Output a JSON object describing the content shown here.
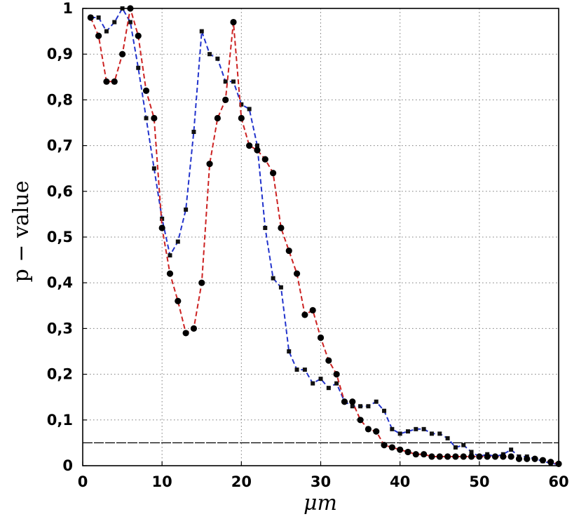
{
  "chart_data": {
    "type": "line",
    "title": "",
    "xlabel": "μm",
    "ylabel": "p − value",
    "xlim": [
      0,
      60
    ],
    "ylim": [
      0,
      1
    ],
    "x_ticks": [
      "0",
      "10",
      "20",
      "30",
      "40",
      "50",
      "60"
    ],
    "y_ticks": [
      "0",
      "0,1",
      "0,2",
      "0,3",
      "0,4",
      "0,5",
      "0,6",
      "0,7",
      "0,8",
      "0,9",
      "1"
    ],
    "grid": true,
    "legend": "none",
    "reference_line": {
      "y": 0.05,
      "color": "#000000"
    },
    "series": [
      {
        "color": "#2233cc",
        "marker": "square",
        "x": [
          1,
          2,
          3,
          4,
          5,
          6,
          7,
          8,
          9,
          10,
          11,
          12,
          13,
          14,
          15,
          16,
          17,
          18,
          19,
          20,
          21,
          22,
          23,
          24,
          25,
          26,
          27,
          28,
          29,
          30,
          31,
          32,
          33,
          34,
          35,
          36,
          37,
          38,
          39,
          40,
          41,
          42,
          43,
          44,
          45,
          46,
          47,
          48,
          49,
          50,
          51,
          52,
          53,
          54,
          55,
          56,
          57,
          58,
          59,
          60
        ],
        "y": [
          0.98,
          0.98,
          0.95,
          0.97,
          1.0,
          0.97,
          0.87,
          0.76,
          0.65,
          0.54,
          0.46,
          0.49,
          0.56,
          0.73,
          0.95,
          0.9,
          0.89,
          0.84,
          0.84,
          0.79,
          0.78,
          0.7,
          0.52,
          0.41,
          0.39,
          0.25,
          0.21,
          0.21,
          0.18,
          0.19,
          0.17,
          0.18,
          0.14,
          0.13,
          0.13,
          0.13,
          0.14,
          0.12,
          0.08,
          0.07,
          0.075,
          0.08,
          0.08,
          0.07,
          0.07,
          0.06,
          0.04,
          0.045,
          0.03,
          0.02,
          0.025,
          0.02,
          0.025,
          0.035,
          0.02,
          0.02,
          0.015,
          0.01,
          0.005,
          0.003
        ]
      },
      {
        "color": "#cc2222",
        "marker": "circle",
        "x": [
          1,
          2,
          3,
          4,
          5,
          6,
          7,
          8,
          9,
          10,
          11,
          12,
          13,
          14,
          15,
          16,
          17,
          18,
          19,
          20,
          21,
          22,
          23,
          24,
          25,
          26,
          27,
          28,
          29,
          30,
          31,
          32,
          33,
          34,
          35,
          36,
          37,
          38,
          39,
          40,
          41,
          42,
          43,
          44,
          45,
          46,
          47,
          48,
          49,
          50,
          51,
          52,
          53,
          54,
          55,
          56,
          57,
          58,
          59,
          60
        ],
        "y": [
          0.98,
          0.94,
          0.84,
          0.84,
          0.9,
          1.0,
          0.94,
          0.82,
          0.76,
          0.52,
          0.42,
          0.36,
          0.29,
          0.3,
          0.4,
          0.66,
          0.76,
          0.8,
          0.97,
          0.76,
          0.7,
          0.69,
          0.67,
          0.64,
          0.52,
          0.47,
          0.42,
          0.33,
          0.34,
          0.28,
          0.23,
          0.2,
          0.14,
          0.14,
          0.1,
          0.08,
          0.075,
          0.045,
          0.04,
          0.035,
          0.03,
          0.025,
          0.025,
          0.02,
          0.02,
          0.02,
          0.02,
          0.02,
          0.02,
          0.02,
          0.02,
          0.02,
          0.02,
          0.02,
          0.015,
          0.015,
          0.015,
          0.012,
          0.008,
          0.004
        ]
      }
    ]
  }
}
